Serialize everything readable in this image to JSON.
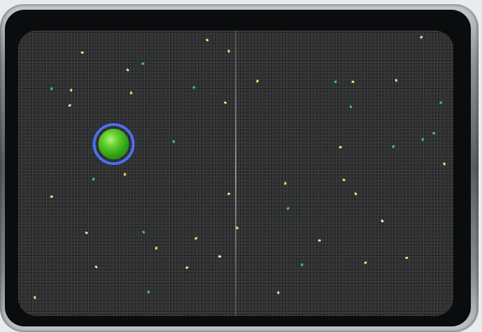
{
  "scene": {
    "objects": [
      {
        "name": "tray",
        "color": "#0b0c0d"
      },
      {
        "name": "rubber-mat",
        "color": "#2c2d2e"
      },
      {
        "name": "green-ball",
        "color": "#3fb51f"
      },
      {
        "name": "target-marker",
        "color": "#4a6ff0"
      }
    ]
  },
  "palette": {
    "accent": "#4a6ff0",
    "ball": "#3fb51f",
    "flake_yellow": "#e8e07a",
    "flake_green": "#3fbf8f",
    "flake_white": "#f0f0f0"
  }
}
